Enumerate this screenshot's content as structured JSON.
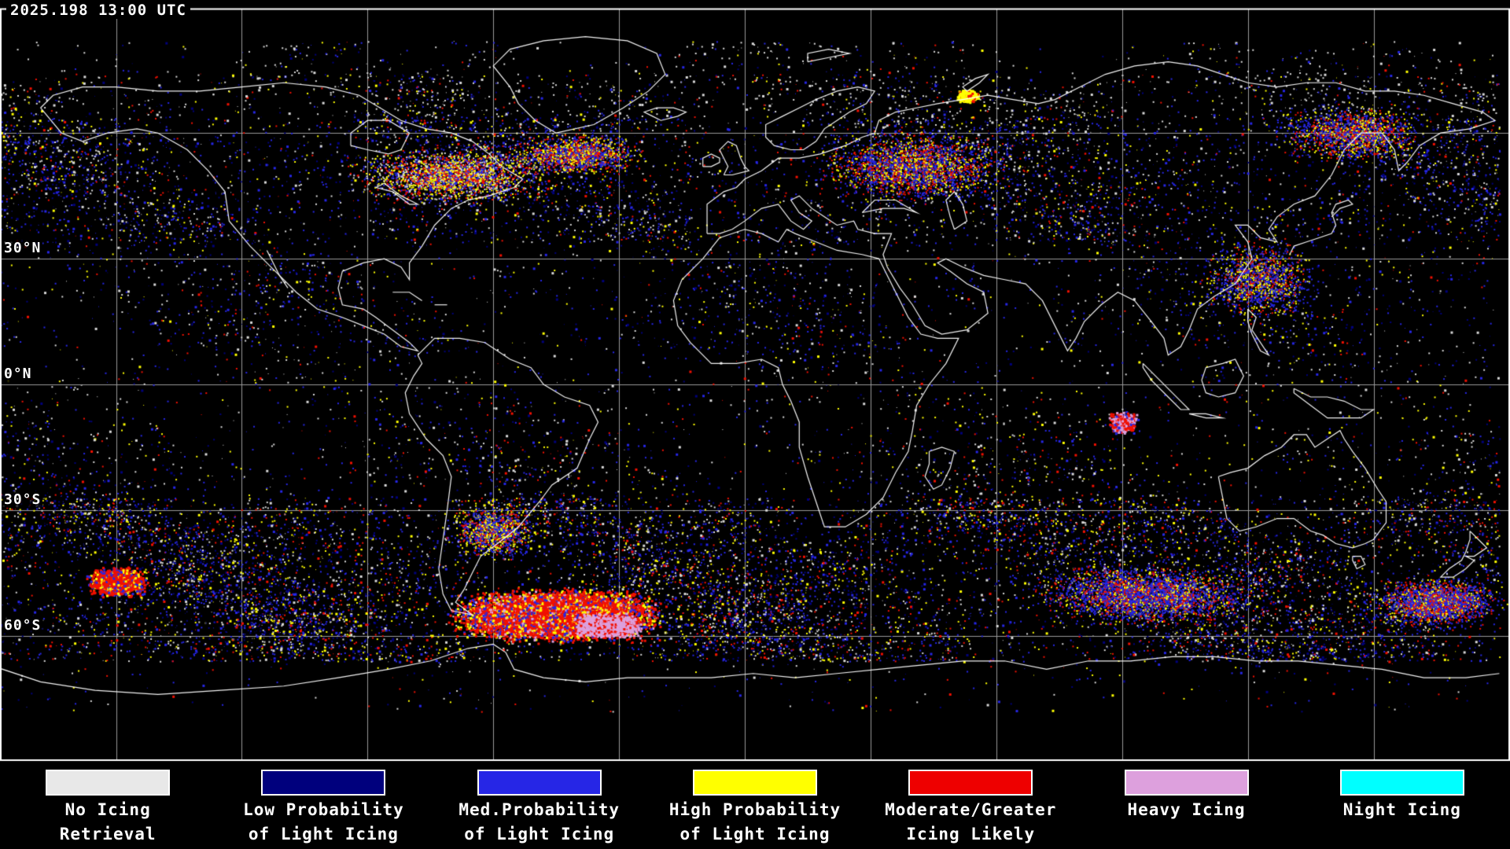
{
  "header": {
    "timestamp": "2025.198 13:00 UTC"
  },
  "map": {
    "lat_labels": [
      {
        "text": "30°N",
        "lat": 30
      },
      {
        "text": "0°N",
        "lat": 0
      },
      {
        "text": "30°S",
        "lat": -30
      },
      {
        "text": "60°S",
        "lat": -60
      }
    ],
    "colors": {
      "background": "#000000",
      "coastline": "#ffffff",
      "grid": "#9a9a9a",
      "border": "#ffffff",
      "speckle": {
        "white": "#d9d9d9",
        "navy": "#00007d",
        "blue": "#2626e6",
        "yellow": "#ffff00",
        "red": "#f21000",
        "pink": "#dda0dd",
        "cyan": "#00ffff"
      }
    }
  },
  "legend": {
    "items": [
      {
        "line1": "No Icing",
        "line2": "Retrieval",
        "color": "#e8e8e8"
      },
      {
        "line1": "Low Probability",
        "line2": "of Light Icing",
        "color": "#00007d"
      },
      {
        "line1": "Med.Probability",
        "line2": "of Light Icing",
        "color": "#2626e6"
      },
      {
        "line1": "High Probability",
        "line2": "of Light Icing",
        "color": "#ffff00"
      },
      {
        "line1": "Moderate/Greater",
        "line2": "Icing Likely",
        "color": "#ee0000"
      },
      {
        "line1": "Heavy Icing",
        "line2": "",
        "color": "#dda0dd"
      },
      {
        "line1": "Night Icing",
        "line2": "",
        "color": "#00ffff"
      }
    ]
  }
}
